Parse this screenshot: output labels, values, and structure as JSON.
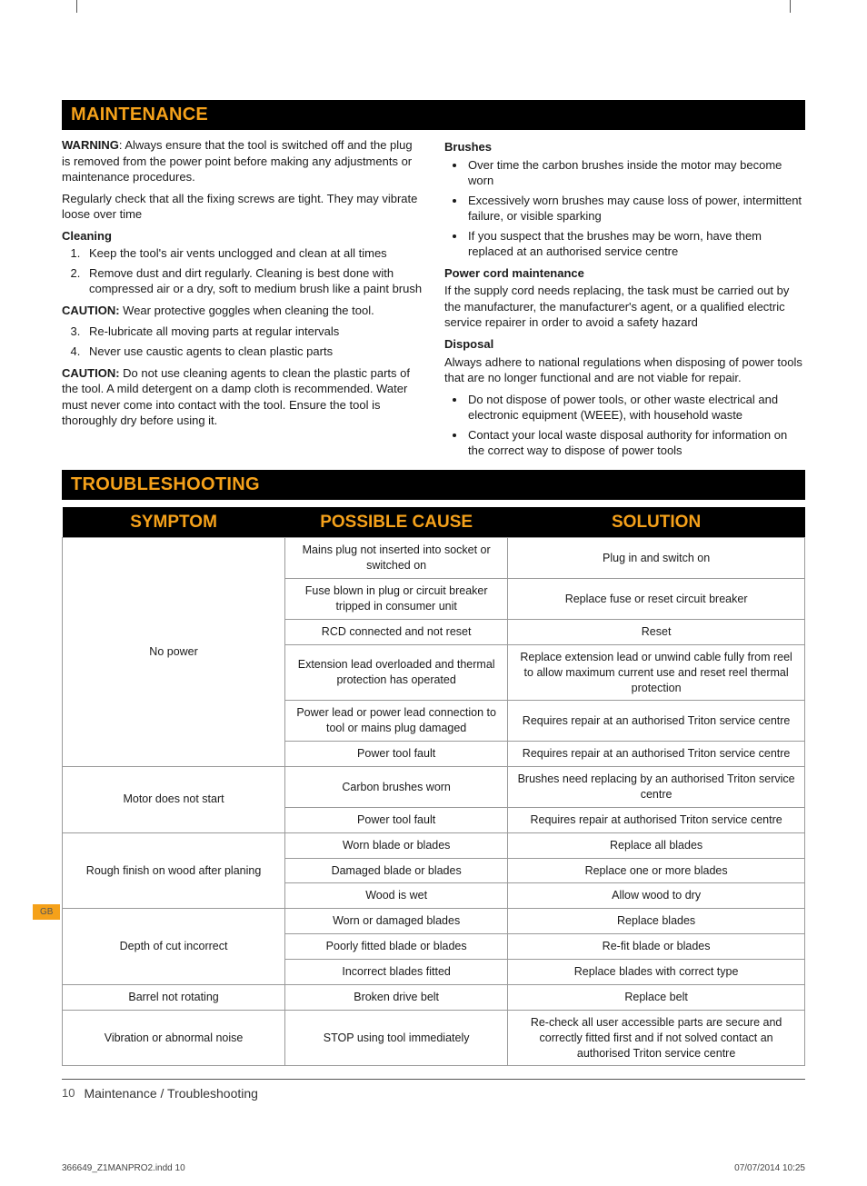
{
  "colors": {
    "accent": "#f5a11a",
    "bar_bg": "#000000",
    "text": "#1a1a1a",
    "border": "#999999"
  },
  "section1_title": "MAINTENANCE",
  "left": {
    "warning_label": "WARNING",
    "warning_text": ": Always ensure that the tool is switched off and the plug is removed from the power point before making any adjustments or maintenance procedures.",
    "para2": "Regularly check that all the fixing screws are tight. They may vibrate loose over time",
    "cleaning_head": "Cleaning",
    "clean1": "Keep the tool's air vents unclogged and clean at all times",
    "clean2": "Remove dust and dirt regularly. Cleaning is best done with compressed air or a dry, soft to medium brush like a paint brush",
    "caution1_label": "CAUTION:",
    "caution1_text": " Wear protective goggles when cleaning the tool.",
    "clean3": "Re-lubricate all moving parts at regular intervals",
    "clean4": "Never use caustic agents to clean plastic parts",
    "caution2_label": "CAUTION:",
    "caution2_text": " Do not use cleaning agents to clean the plastic parts of the tool. A mild detergent on a damp cloth is recommended. Water must never come into contact with the tool. Ensure the tool is thoroughly dry before using it."
  },
  "right": {
    "brushes_head": "Brushes",
    "b1": "Over time the carbon brushes inside the motor may become worn",
    "b2": "Excessively worn brushes may cause loss of power, intermittent failure, or visible sparking",
    "b3": "If you suspect that the brushes may be worn, have them replaced at an authorised service centre",
    "pcm_head": "Power cord maintenance",
    "pcm_text": "If the supply cord needs replacing, the task must be carried out by the manufacturer, the manufacturer's agent, or a qualified electric service repairer in order to avoid a safety hazard",
    "disposal_head": "Disposal",
    "disposal_text": "Always adhere to national regulations when disposing of power tools that are no longer functional and are not viable for repair.",
    "d1": "Do not dispose of power tools, or other waste electrical and electronic equipment (WEEE), with household waste",
    "d2": "Contact your local waste disposal authority for information on the correct  way to dispose of power tools"
  },
  "section2_title": "TROUBLESHOOTING",
  "table": {
    "col_widths": [
      "30%",
      "30%",
      "40%"
    ],
    "headers": [
      "SYMPTOM",
      "POSSIBLE CAUSE",
      "SOLUTION"
    ],
    "groups": [
      {
        "symptom": "No power",
        "rows": [
          [
            "Mains plug not inserted into socket or switched on",
            "Plug in and switch on"
          ],
          [
            "Fuse blown in plug or circuit breaker tripped in consumer unit",
            "Replace fuse or reset circuit breaker"
          ],
          [
            "RCD connected and not reset",
            "Reset"
          ],
          [
            "Extension lead overloaded and thermal protection has operated",
            "Replace extension lead or unwind cable fully from reel to allow maximum current use and reset reel thermal protection"
          ],
          [
            "Power lead or power lead connection to tool or mains plug damaged",
            "Requires repair at an authorised Triton service centre"
          ],
          [
            "Power tool fault",
            "Requires repair at an authorised Triton service centre"
          ]
        ]
      },
      {
        "symptom": "Motor does not start",
        "rows": [
          [
            "Carbon brushes worn",
            "Brushes need replacing by an authorised Triton service centre"
          ],
          [
            "Power tool fault",
            "Requires repair at authorised Triton service centre"
          ]
        ]
      },
      {
        "symptom": "Rough finish on wood after planing",
        "rows": [
          [
            "Worn blade or blades",
            "Replace all blades"
          ],
          [
            "Damaged blade or blades",
            "Replace one or more blades"
          ],
          [
            "Wood is wet",
            "Allow wood to dry"
          ]
        ]
      },
      {
        "symptom": "Depth of cut incorrect",
        "rows": [
          [
            "Worn or damaged blades",
            "Replace blades"
          ],
          [
            "Poorly fitted blade or blades",
            "Re-fit blade or blades"
          ],
          [
            "Incorrect blades fitted",
            "Replace blades with correct type"
          ]
        ]
      },
      {
        "symptom": "Barrel not rotating",
        "rows": [
          [
            "Broken drive belt",
            "Replace belt"
          ]
        ]
      },
      {
        "symptom": "Vibration or abnormal noise",
        "rows": [
          [
            "STOP using tool immediately",
            "Re-check all user accessible parts are secure and correctly fitted first and if not solved contact an authorised Triton service centre"
          ]
        ]
      }
    ]
  },
  "footer": {
    "page_num": "10",
    "title": "Maintenance / Troubleshooting"
  },
  "tab": "GB",
  "slug_left": "366649_Z1MANPRO2.indd   10",
  "slug_right": "07/07/2014   10:25"
}
